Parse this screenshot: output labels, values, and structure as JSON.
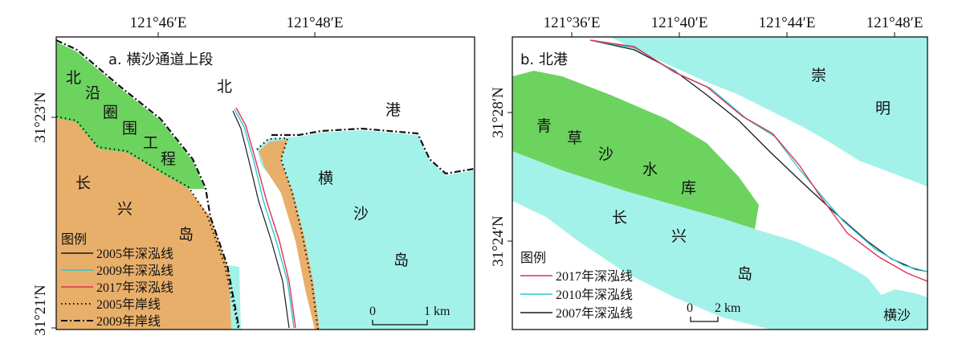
{
  "colors": {
    "water": "#ffffff",
    "island": "#a3f2e9",
    "reclaimed": "#6dd35f",
    "changxing": "#e8af6a",
    "line_2005": "#1a1a1a",
    "line_2009": "#29c9d6",
    "line_2017": "#e0324f",
    "line_2010": "#29c9d6",
    "line_2007": "#1a1a1a"
  },
  "panel_a": {
    "title": "a. 横沙通道上段",
    "top_ticks": [
      "121°46′E",
      "121°48′E"
    ],
    "left_ticks": [
      "31°23′N",
      "31°21′N"
    ],
    "place_labels": {
      "reclaim": [
        "北",
        "沿",
        "圈",
        "围",
        "工",
        "程"
      ],
      "changxing": [
        "长",
        "兴",
        "岛"
      ],
      "channel": [
        "北",
        "港"
      ],
      "hengsha": [
        "横",
        "沙",
        "岛"
      ]
    },
    "legend": {
      "title": "图例",
      "items": [
        {
          "label": "2005年深泓线",
          "style": "solid",
          "color_key": "line_2005"
        },
        {
          "label": "2009年深泓线",
          "style": "solid",
          "color_key": "line_2009"
        },
        {
          "label": "2017年深泓线",
          "style": "solid",
          "color_key": "line_2017"
        },
        {
          "label": "2005年岸线",
          "style": "dotted",
          "color_key": "line_2005"
        },
        {
          "label": "2009年岸线",
          "style": "dashdot",
          "color_key": "line_2005"
        }
      ]
    },
    "scale": {
      "zero": "0",
      "end": "1 km"
    }
  },
  "panel_b": {
    "title": "b. 北港",
    "top_ticks": [
      "121°36′E",
      "121°40′E",
      "121°44′E",
      "121°48′E"
    ],
    "left_ticks": [
      "31°28′N",
      "31°24′N"
    ],
    "place_labels": {
      "chongming": [
        "崇",
        "明"
      ],
      "qingcaosha": [
        "青",
        "草",
        "沙",
        "水",
        "库"
      ],
      "changxing": [
        "长",
        "兴",
        "岛"
      ],
      "hengsha": "横沙"
    },
    "legend": {
      "title": "图例",
      "items": [
        {
          "label": "2017年深泓线",
          "color_key": "line_2017"
        },
        {
          "label": "2010年深泓线",
          "color_key": "line_2010"
        },
        {
          "label": "2007年深泓线",
          "color_key": "line_2007"
        }
      ]
    },
    "scale": {
      "zero": "0",
      "end": "2 km"
    }
  }
}
